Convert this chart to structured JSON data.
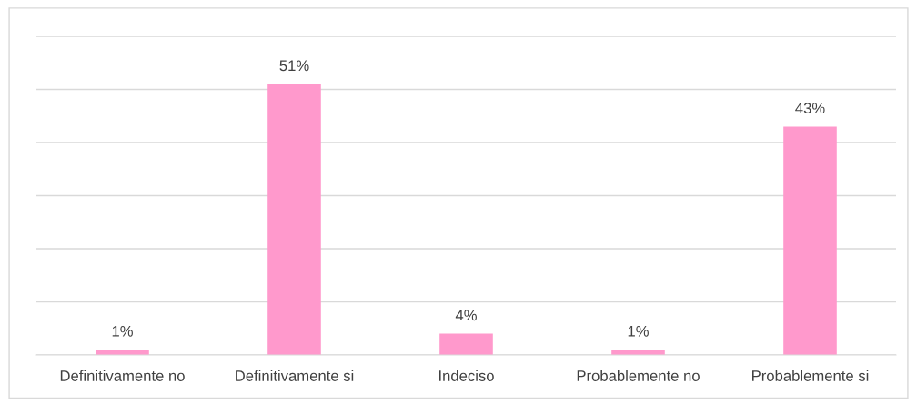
{
  "chart_data": {
    "type": "bar",
    "categories": [
      "Definitivamente no",
      "Definitivamente si",
      "Indeciso",
      "Probablemente no",
      "Probablemente si"
    ],
    "values": [
      1,
      51,
      4,
      1,
      43
    ],
    "value_labels": [
      "1%",
      "51%",
      "4%",
      "1%",
      "43%"
    ],
    "color": "#ff99cc",
    "ylim": [
      0,
      60
    ],
    "yticks": [
      {
        "value": 0,
        "label": null
      },
      {
        "value": 10,
        "label": null
      },
      {
        "value": 20,
        "label": null
      },
      {
        "value": 30,
        "label": null
      },
      {
        "value": 40,
        "label": null
      },
      {
        "value": 50,
        "label": null
      },
      {
        "value": 60,
        "label": null
      }
    ],
    "grid": "y",
    "tick_labels": "x",
    "legend": false
  }
}
